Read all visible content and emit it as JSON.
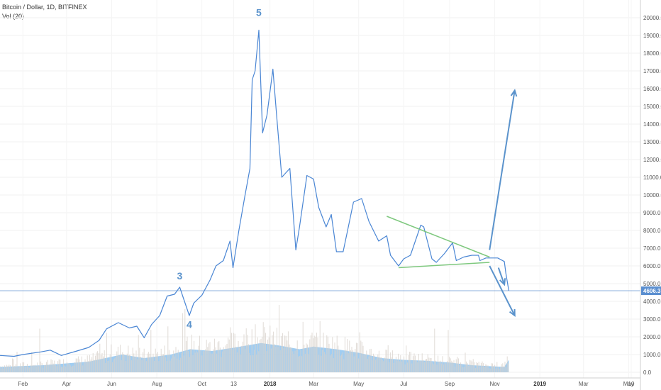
{
  "header": {
    "symbol": "Bitcoin / Dollar, 1D, BITFINEX",
    "volume_label": "Vol (20)"
  },
  "price_label": "4606.3",
  "colors": {
    "price_line": "#4a86d4",
    "volume_fill": "#90c4ee",
    "volume_bar": "#d8d2cc",
    "trendline": "#7ec87e",
    "arrow": "#5b93cc",
    "price_box": "#5b8fd0",
    "wave_label": "#5b93cc"
  },
  "chart_data": {
    "type": "line",
    "y_axis": {
      "ticks": [
        "20000.0",
        "19000.0",
        "18000.0",
        "17000.0",
        "16000.0",
        "15000.0",
        "14000.0",
        "13000.0",
        "12000.0",
        "11000.0",
        "10000.0",
        "9000.0",
        "8000.0",
        "7000.0",
        "6000.0",
        "5000.0",
        "4000.0",
        "3000.0",
        "2000.0",
        "1000.0",
        "0.0"
      ],
      "range": [
        0,
        20000
      ]
    },
    "x_axis": {
      "ticks": [
        {
          "label": "Feb",
          "bold": false
        },
        {
          "label": "Apr",
          "bold": false
        },
        {
          "label": "Jun",
          "bold": false
        },
        {
          "label": "Aug",
          "bold": false
        },
        {
          "label": "Oct",
          "bold": false
        },
        {
          "label": "13",
          "bold": false
        },
        {
          "label": "2018",
          "bold": true
        },
        {
          "label": "Mar",
          "bold": false
        },
        {
          "label": "May",
          "bold": false
        },
        {
          "label": "Jul",
          "bold": false
        },
        {
          "label": "Sep",
          "bold": false
        },
        {
          "label": "Nov",
          "bold": false
        },
        {
          "label": "2019",
          "bold": true
        },
        {
          "label": "Mar",
          "bold": false
        },
        {
          "label": "May",
          "bold": false
        },
        {
          "label": "10",
          "bold": false
        }
      ]
    },
    "price_series": [
      [
        "2017-01-01",
        950
      ],
      [
        "2017-01-20",
        900
      ],
      [
        "2017-02-01",
        1000
      ],
      [
        "2017-02-25",
        1150
      ],
      [
        "2017-03-10",
        1250
      ],
      [
        "2017-03-25",
        950
      ],
      [
        "2017-04-15",
        1200
      ],
      [
        "2017-05-01",
        1400
      ],
      [
        "2017-05-15",
        1800
      ],
      [
        "2017-05-25",
        2450
      ],
      [
        "2017-06-10",
        2800
      ],
      [
        "2017-06-25",
        2500
      ],
      [
        "2017-07-05",
        2600
      ],
      [
        "2017-07-15",
        1950
      ],
      [
        "2017-07-25",
        2700
      ],
      [
        "2017-08-05",
        3200
      ],
      [
        "2017-08-15",
        4300
      ],
      [
        "2017-08-25",
        4400
      ],
      [
        "2017-09-01",
        4800
      ],
      [
        "2017-09-05",
        4300
      ],
      [
        "2017-09-14",
        3200
      ],
      [
        "2017-09-20",
        3900
      ],
      [
        "2017-10-01",
        4350
      ],
      [
        "2017-10-12",
        5200
      ],
      [
        "2017-10-20",
        6000
      ],
      [
        "2017-10-30",
        6300
      ],
      [
        "2017-11-08",
        7400
      ],
      [
        "2017-11-12",
        5900
      ],
      [
        "2017-11-20",
        8000
      ],
      [
        "2017-11-28",
        9900
      ],
      [
        "2017-12-05",
        11500
      ],
      [
        "2017-12-08",
        16500
      ],
      [
        "2017-12-12",
        17000
      ],
      [
        "2017-12-17",
        19300
      ],
      [
        "2017-12-22",
        13500
      ],
      [
        "2017-12-28",
        14500
      ],
      [
        "2018-01-05",
        17100
      ],
      [
        "2018-01-10",
        14500
      ],
      [
        "2018-01-17",
        11000
      ],
      [
        "2018-01-28",
        11500
      ],
      [
        "2018-02-05",
        6900
      ],
      [
        "2018-02-10",
        8200
      ],
      [
        "2018-02-20",
        11100
      ],
      [
        "2018-03-01",
        10900
      ],
      [
        "2018-03-08",
        9300
      ],
      [
        "2018-03-18",
        8200
      ],
      [
        "2018-03-25",
        8900
      ],
      [
        "2018-04-01",
        6800
      ],
      [
        "2018-04-10",
        6800
      ],
      [
        "2018-04-16",
        8000
      ],
      [
        "2018-04-24",
        9600
      ],
      [
        "2018-05-05",
        9800
      ],
      [
        "2018-05-15",
        8500
      ],
      [
        "2018-05-28",
        7400
      ],
      [
        "2018-06-08",
        7700
      ],
      [
        "2018-06-13",
        6600
      ],
      [
        "2018-06-24",
        6000
      ],
      [
        "2018-07-01",
        6400
      ],
      [
        "2018-07-10",
        6600
      ],
      [
        "2018-07-24",
        8300
      ],
      [
        "2018-07-28",
        8200
      ],
      [
        "2018-08-08",
        6400
      ],
      [
        "2018-08-14",
        6200
      ],
      [
        "2018-08-25",
        6700
      ],
      [
        "2018-09-05",
        7300
      ],
      [
        "2018-09-10",
        6300
      ],
      [
        "2018-09-20",
        6500
      ],
      [
        "2018-10-01",
        6600
      ],
      [
        "2018-10-10",
        6600
      ],
      [
        "2018-10-12",
        6300
      ],
      [
        "2018-10-20",
        6450
      ],
      [
        "2018-11-05",
        6450
      ],
      [
        "2018-11-14",
        6250
      ],
      [
        "2018-11-16",
        5600
      ],
      [
        "2018-11-20",
        4600
      ]
    ],
    "volume_envelope": [
      [
        "2017-01-01",
        300
      ],
      [
        "2017-03-01",
        400
      ],
      [
        "2017-05-01",
        600
      ],
      [
        "2017-06-15",
        1000
      ],
      [
        "2017-07-15",
        800
      ],
      [
        "2017-08-20",
        1000
      ],
      [
        "2017-09-15",
        1300
      ],
      [
        "2017-10-15",
        1200
      ],
      [
        "2017-11-15",
        1400
      ],
      [
        "2017-12-20",
        1650
      ],
      [
        "2018-01-15",
        1500
      ],
      [
        "2018-02-10",
        1300
      ],
      [
        "2018-03-01",
        1450
      ],
      [
        "2018-04-01",
        1300
      ],
      [
        "2018-05-01",
        1100
      ],
      [
        "2018-06-01",
        800
      ],
      [
        "2018-07-01",
        700
      ],
      [
        "2018-08-01",
        650
      ],
      [
        "2018-09-01",
        550
      ],
      [
        "2018-10-01",
        400
      ],
      [
        "2018-11-14",
        300
      ],
      [
        "2018-11-20",
        700
      ]
    ],
    "trendlines": [
      {
        "from": [
          "2018-06-08",
          8800
        ],
        "to": [
          "2018-10-25",
          6500
        ]
      },
      {
        "from": [
          "2018-06-24",
          5900
        ],
        "to": [
          "2018-10-25",
          6200
        ]
      }
    ],
    "arrows": [
      {
        "from": [
          "2018-10-25",
          6900
        ],
        "to": [
          "2018-11-28",
          15900
        ]
      },
      {
        "from": [
          "2018-10-25",
          6000
        ],
        "to": [
          "2018-11-28",
          3200
        ]
      },
      {
        "from": [
          "2018-11-06",
          5900
        ],
        "to": [
          "2018-11-14",
          4950
        ]
      }
    ],
    "wave_labels": [
      {
        "text": "5",
        "at": [
          "2017-12-17",
          20100
        ]
      },
      {
        "text": "3",
        "at": [
          "2017-09-01",
          5250
        ]
      },
      {
        "text": "4",
        "at": [
          "2017-09-14",
          2500
        ]
      }
    ]
  }
}
